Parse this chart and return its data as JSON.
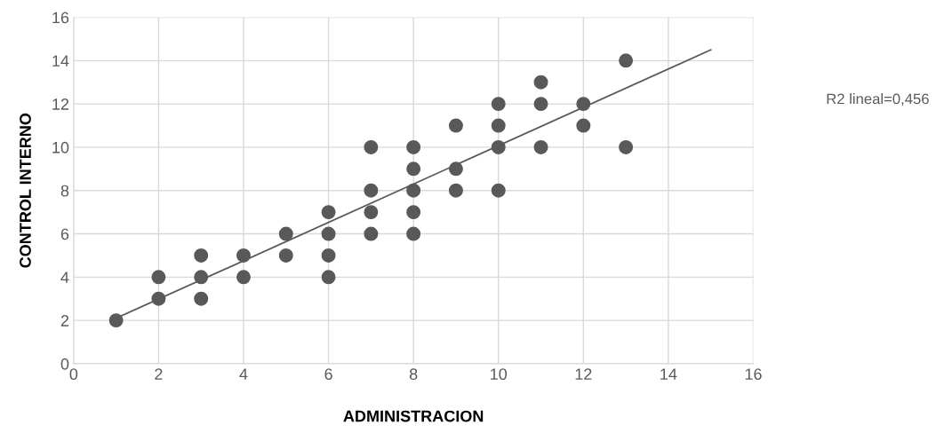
{
  "chart_data": {
    "type": "scatter",
    "xlabel": "ADMINISTRACION",
    "ylabel": "CONTROL INTERNO",
    "xlim": [
      0,
      16
    ],
    "ylim": [
      0,
      16
    ],
    "xticks": [
      0,
      2,
      4,
      6,
      8,
      10,
      12,
      14,
      16
    ],
    "yticks": [
      0,
      2,
      4,
      6,
      8,
      10,
      12,
      14,
      16
    ],
    "grid": true,
    "annotations": [
      "R2 lineal=0,456"
    ],
    "series": [
      {
        "marker": "circle",
        "color": "#595959",
        "x": [
          1,
          2,
          2,
          3,
          3,
          3,
          4,
          4,
          5,
          5,
          6,
          6,
          6,
          6,
          7,
          7,
          7,
          7,
          8,
          8,
          8,
          8,
          8,
          9,
          9,
          9,
          10,
          10,
          10,
          10,
          11,
          11,
          11,
          12,
          12,
          13,
          13
        ],
        "values": [
          2,
          4,
          3,
          5,
          4,
          3,
          5,
          4,
          6,
          5,
          7,
          6,
          5,
          4,
          10,
          8,
          7,
          6,
          10,
          9,
          8,
          7,
          6,
          11,
          9,
          8,
          12,
          11,
          10,
          8,
          13,
          12,
          10,
          12,
          11,
          14,
          10
        ]
      },
      {
        "type": "line",
        "marker": "none",
        "color": "#595959",
        "x": [
          1,
          15
        ],
        "values": [
          2.1,
          14.5
        ]
      }
    ]
  }
}
